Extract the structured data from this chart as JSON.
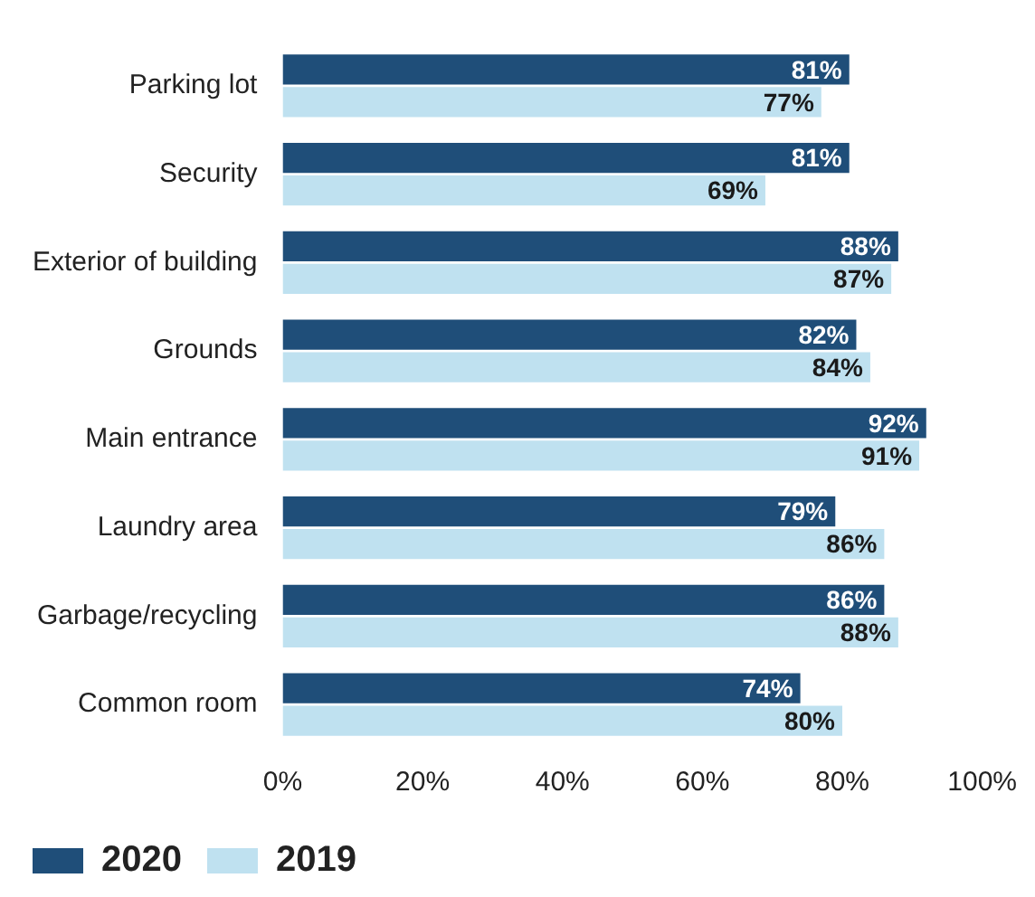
{
  "chart_data": {
    "type": "bar",
    "orientation": "horizontal",
    "categories": [
      "Parking lot",
      "Security",
      "Exterior of building",
      "Grounds",
      "Main entrance",
      "Laundry area",
      "Garbage/recycling",
      "Common room"
    ],
    "series": [
      {
        "name": "2020",
        "color": "#1f4e79",
        "values": [
          81,
          81,
          88,
          82,
          92,
          79,
          86,
          74
        ],
        "value_labels": [
          "81%",
          "81%",
          "88%",
          "82%",
          "92%",
          "79%",
          "86%",
          "74%"
        ]
      },
      {
        "name": "2019",
        "color": "#bfe1f0",
        "values": [
          77,
          69,
          87,
          84,
          91,
          86,
          88,
          80
        ],
        "value_labels": [
          "77%",
          "69%",
          "87%",
          "84%",
          "91%",
          "86%",
          "88%",
          "80%"
        ]
      }
    ],
    "xlim": [
      0,
      100
    ],
    "xticks": [
      {
        "value": 0,
        "label": "0%"
      },
      {
        "value": 20,
        "label": "20%"
      },
      {
        "value": 40,
        "label": "40%"
      },
      {
        "value": 60,
        "label": "60%"
      },
      {
        "value": 80,
        "label": "80%"
      },
      {
        "value": 100,
        "label": "100%"
      }
    ],
    "grid": false,
    "legend": "bottom left"
  }
}
